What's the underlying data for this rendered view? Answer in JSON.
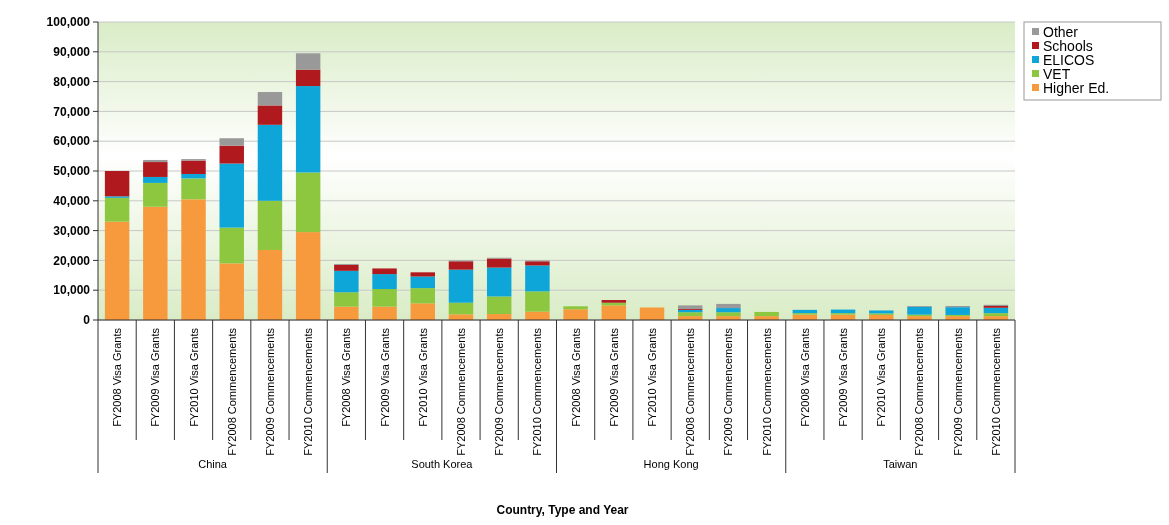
{
  "chart_data": {
    "type": "bar",
    "stacked": true,
    "xlabel": "Country, Type and Year",
    "categories": [
      "FY2008 Visa Grants",
      "FY2009 Visa Grants",
      "FY2010 Visa Grants",
      "FY2008 Commencements",
      "FY2009 Commencements",
      "FY2010 Commencements",
      "FY2008 Visa Grants",
      "FY2009 Visa Grants",
      "FY2010 Visa Grants",
      "FY2008 Commencements",
      "FY2009 Commencements",
      "FY2010 Commencements",
      "FY2008 Visa Grants",
      "FY2009 Visa Grants",
      "FY2010 Visa Grants",
      "FY2008 Commencements",
      "FY2009 Commencements",
      "FY2010 Commencements",
      "FY2008 Visa Grants",
      "FY2009 Visa Grants",
      "FY2010 Visa Grants",
      "FY2008 Commencements",
      "FY2009 Commencements",
      "FY2010 Commencements"
    ],
    "annotations": [
      "China",
      "South Korea",
      "Hong Kong",
      "Taiwan"
    ],
    "series": [
      {
        "name": "Higher Ed.",
        "color": "#f79a3e",
        "values": [
          33000,
          38000,
          40500,
          19000,
          23500,
          29500,
          4500,
          4500,
          5600,
          1900,
          2000,
          2800,
          3600,
          4900,
          4200,
          1300,
          1300,
          1300,
          1800,
          1800,
          1700,
          1300,
          1300,
          1300
        ]
      },
      {
        "name": "VET",
        "color": "#8dc63f",
        "values": [
          8000,
          8000,
          7000,
          12000,
          16500,
          20000,
          4800,
          5900,
          5100,
          3900,
          5900,
          6800,
          1000,
          900,
          null,
          1300,
          1300,
          1400,
          500,
          500,
          500,
          500,
          400,
          1000
        ]
      },
      {
        "name": "ELICOS",
        "color": "#0ea5d8",
        "values": [
          500,
          2000,
          1500,
          21500,
          25500,
          29000,
          7200,
          5000,
          3900,
          11100,
          9700,
          8700,
          0,
          0,
          0,
          800,
          1400,
          0,
          1100,
          1200,
          1000,
          2600,
          2600,
          1800
        ]
      },
      {
        "name": "Schools",
        "color": "#b0191e",
        "values": [
          8500,
          5000,
          4500,
          6000,
          6500,
          5500,
          2000,
          1900,
          1400,
          2800,
          3000,
          1400,
          null,
          900,
          0,
          300,
          0,
          0,
          null,
          null,
          null,
          0,
          0,
          600
        ]
      },
      {
        "name": "Other",
        "color": "#999999",
        "values": [
          0,
          700,
          500,
          2500,
          4500,
          5500,
          300,
          0,
          0,
          300,
          300,
          300,
          0,
          0,
          0,
          1200,
          1400,
          0,
          0,
          0,
          0,
          300,
          400,
          400
        ]
      }
    ],
    "ylim": [
      0,
      100000
    ],
    "yticks": [
      0,
      {
        "value": 10000,
        "label": "10,000"
      },
      {
        "value": 20000,
        "label": "20,000"
      },
      {
        "value": 30000,
        "label": "30,000"
      },
      {
        "value": 40000,
        "label": "40,000"
      },
      {
        "value": 50000,
        "label": "50,000"
      },
      {
        "value": 60000,
        "label": "60,000"
      },
      {
        "value": 70000,
        "label": "70,000"
      },
      {
        "value": 80000,
        "label": "80,000"
      },
      {
        "value": 90000,
        "label": "90,000"
      },
      {
        "value": 100000,
        "label": "100,000"
      }
    ],
    "grid": "y",
    "legend": "top right"
  }
}
